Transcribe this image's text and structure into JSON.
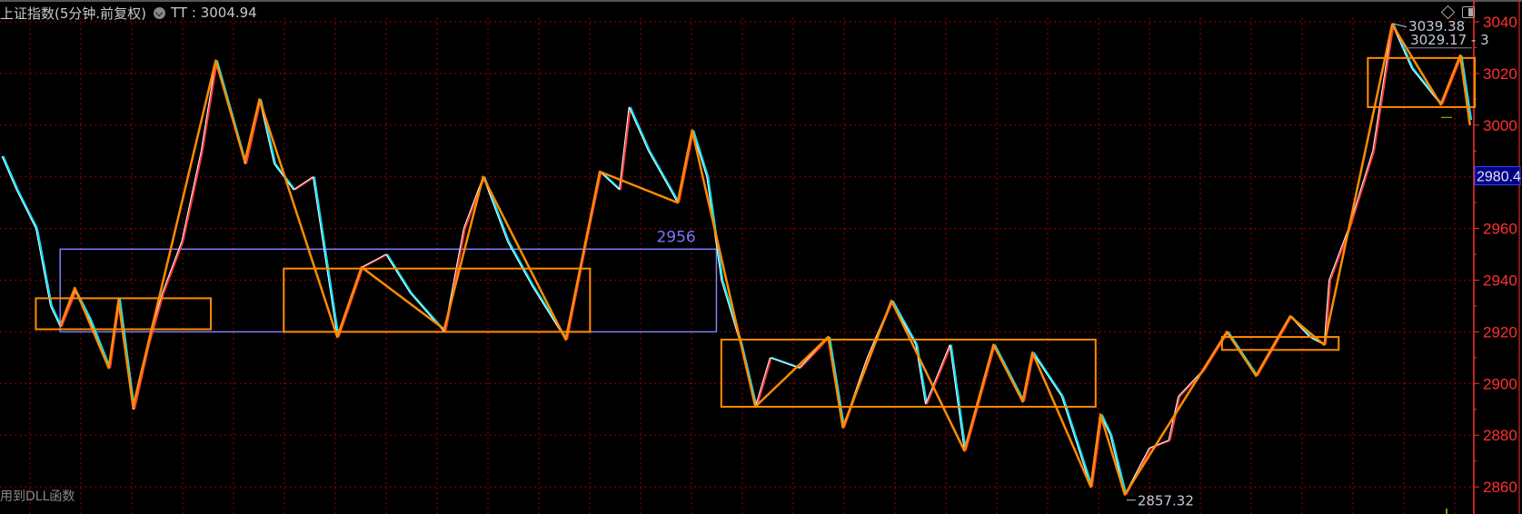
{
  "header": {
    "title": "上证指数(5分钟.前复权)",
    "indicator_label": "TT",
    "indicator_value": "3004.94",
    "dropdown_icon": "chevron-down-circle-icon"
  },
  "footer": {
    "text": "用到DLL函数"
  },
  "toolbar_icons": [
    "diamond-icon",
    "panel-toggle-icon"
  ],
  "colors": {
    "background": "#000000",
    "grid": "#b00000",
    "axis": "#ff3030",
    "price_up": "#ff3b3b",
    "price_down": "#00e5ff",
    "price_line": "#ffffff",
    "zigzag": "#ff8c00",
    "box": "#ff8c00",
    "range_box": "#8080ff",
    "current_price_bg": "#000080"
  },
  "chart_data": {
    "type": "line",
    "title": "上证指数(5分钟.前复权)",
    "ylim": [
      2848,
      3048
    ],
    "yticks": [
      2860,
      2880,
      2900,
      2920,
      2940,
      2960,
      2980,
      3000,
      3020,
      3040
    ],
    "ytick_labels": [
      "2860",
      "2880",
      "2900",
      "2920",
      "2940",
      "2960",
      "2980",
      "3000",
      "3020",
      "3040"
    ],
    "grid": true,
    "price_series": [
      [
        0,
        2988
      ],
      [
        3,
        2975
      ],
      [
        7,
        2960
      ],
      [
        10,
        2930
      ],
      [
        12,
        2922
      ],
      [
        15,
        2936
      ],
      [
        18,
        2925
      ],
      [
        22,
        2906
      ],
      [
        24,
        2933
      ],
      [
        27,
        2890
      ],
      [
        30,
        2915
      ],
      [
        33,
        2935
      ],
      [
        37,
        2955
      ],
      [
        41,
        2990
      ],
      [
        44,
        3025
      ],
      [
        47,
        3005
      ],
      [
        50,
        2985
      ],
      [
        53,
        3010
      ],
      [
        56,
        2985
      ],
      [
        60,
        2975
      ],
      [
        64,
        2980
      ],
      [
        69,
        2918
      ],
      [
        74,
        2945
      ],
      [
        79,
        2950
      ],
      [
        84,
        2935
      ],
      [
        91,
        2920
      ],
      [
        95,
        2960
      ],
      [
        99,
        2980
      ],
      [
        104,
        2955
      ],
      [
        109,
        2938
      ],
      [
        116,
        2917
      ],
      [
        120,
        2955
      ],
      [
        123,
        2982
      ],
      [
        127,
        2975
      ],
      [
        129,
        3007
      ],
      [
        133,
        2990
      ],
      [
        139,
        2970
      ],
      [
        142,
        2998
      ],
      [
        145,
        2980
      ],
      [
        148,
        2940
      ],
      [
        152,
        2915
      ],
      [
        155,
        2891
      ],
      [
        158,
        2910
      ],
      [
        164,
        2906
      ],
      [
        170,
        2918
      ],
      [
        173,
        2883
      ],
      [
        178,
        2910
      ],
      [
        183,
        2932
      ],
      [
        188,
        2915
      ],
      [
        190,
        2892
      ],
      [
        195,
        2915
      ],
      [
        198,
        2874
      ],
      [
        204,
        2915
      ],
      [
        210,
        2893
      ],
      [
        212,
        2912
      ],
      [
        218,
        2895
      ],
      [
        224,
        2860
      ],
      [
        226,
        2888
      ],
      [
        228,
        2880
      ],
      [
        231,
        2857
      ],
      [
        236,
        2875
      ],
      [
        240,
        2878
      ],
      [
        242,
        2895
      ],
      [
        247,
        2905
      ],
      [
        252,
        2920
      ],
      [
        258,
        2903
      ],
      [
        265,
        2926
      ],
      [
        269,
        2918
      ],
      [
        272,
        2915
      ],
      [
        273,
        2940
      ],
      [
        277,
        2960
      ],
      [
        282,
        2990
      ],
      [
        286,
        3039
      ],
      [
        290,
        3022
      ],
      [
        296,
        3008
      ],
      [
        300,
        3027
      ],
      [
        302,
        3002
      ]
    ],
    "zigzag": [
      [
        12,
        2922
      ],
      [
        15,
        2937
      ],
      [
        22,
        2906
      ],
      [
        24,
        2932
      ],
      [
        27,
        2891
      ],
      [
        44,
        3025
      ],
      [
        50,
        2986
      ],
      [
        53,
        3010
      ],
      [
        69,
        2918
      ],
      [
        74,
        2945
      ],
      [
        91,
        2921
      ],
      [
        99,
        2980
      ],
      [
        116,
        2917
      ],
      [
        123,
        2982
      ],
      [
        139,
        2970
      ],
      [
        142,
        2998
      ],
      [
        155,
        2891
      ],
      [
        170,
        2918
      ],
      [
        173,
        2883
      ],
      [
        183,
        2932
      ],
      [
        198,
        2874
      ],
      [
        204,
        2915
      ],
      [
        210,
        2893
      ],
      [
        212,
        2912
      ],
      [
        224,
        2860
      ],
      [
        226,
        2888
      ],
      [
        231,
        2857
      ],
      [
        252,
        2920
      ],
      [
        258,
        2903
      ],
      [
        265,
        2926
      ],
      [
        272,
        2915
      ],
      [
        286,
        3039
      ],
      [
        296,
        3008
      ],
      [
        300,
        3027
      ],
      [
        302,
        3000
      ]
    ],
    "boxes": [
      {
        "x0": 7,
        "x1": 43,
        "low": 2921,
        "high": 2933
      },
      {
        "x0": 58,
        "x1": 121,
        "low": 2920,
        "high": 2944.5
      },
      {
        "x0": 148,
        "x1": 225,
        "low": 2891,
        "high": 2917
      },
      {
        "x0": 251,
        "x1": 275,
        "low": 2913,
        "high": 2918
      },
      {
        "x0": 281,
        "x1": 303,
        "low": 3007,
        "high": 3026
      }
    ],
    "range_box": {
      "x0": 12,
      "x1": 147,
      "low": 2920,
      "high": 2952,
      "label": "2956"
    },
    "annotations": {
      "high_label": "3039.38",
      "high_x": 286,
      "high_price": 3039.38,
      "secondary_label": "3029.17 - 3",
      "low_label": "2857.32",
      "low_x": 231,
      "low_price": 2857.32
    },
    "current_price": "2980.4"
  }
}
